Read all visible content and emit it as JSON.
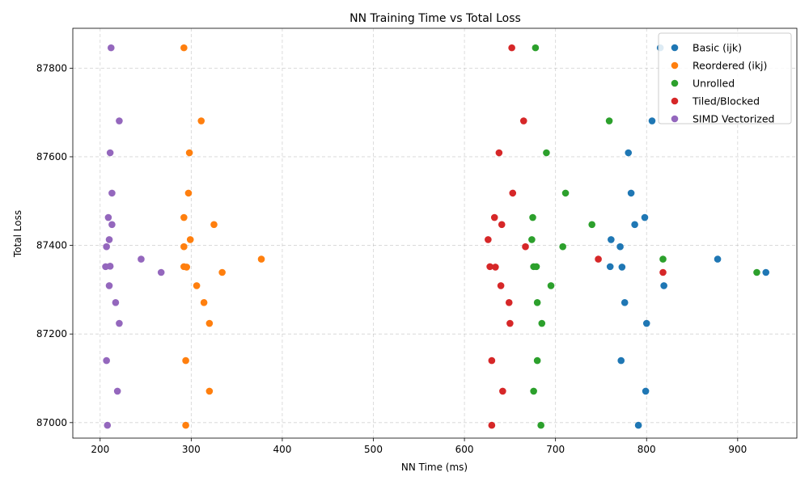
{
  "chart_data": {
    "type": "scatter",
    "title": "NN Training Time vs Total Loss",
    "xlabel": "NN Time (ms)",
    "ylabel": "Total Loss",
    "xlim": [
      170,
      965
    ],
    "ylim": [
      86965,
      87890
    ],
    "xticks": [
      200,
      300,
      400,
      500,
      600,
      700,
      800,
      900
    ],
    "yticks": [
      87000,
      87200,
      87400,
      87600,
      87800
    ],
    "grid": true,
    "legend_position": "top-right",
    "series": [
      {
        "name": "Basic (ijk)",
        "color": "#1f77b4",
        "points": [
          [
            815,
            87846
          ],
          [
            806,
            87681
          ],
          [
            780,
            87609
          ],
          [
            783,
            87518
          ],
          [
            798,
            87463
          ],
          [
            787,
            87447
          ],
          [
            761,
            87413
          ],
          [
            771,
            87397
          ],
          [
            878,
            87369
          ],
          [
            760,
            87352
          ],
          [
            773,
            87351
          ],
          [
            931,
            87339
          ],
          [
            819,
            87309
          ],
          [
            776,
            87271
          ],
          [
            800,
            87224
          ],
          [
            772,
            87140
          ],
          [
            799,
            87071
          ],
          [
            791,
            86994
          ]
        ]
      },
      {
        "name": "Reordered (ikj)",
        "color": "#ff7f0e",
        "points": [
          [
            292,
            87846
          ],
          [
            311,
            87681
          ],
          [
            298,
            87609
          ],
          [
            297,
            87518
          ],
          [
            292,
            87463
          ],
          [
            325,
            87447
          ],
          [
            299,
            87413
          ],
          [
            292,
            87397
          ],
          [
            377,
            87369
          ],
          [
            292,
            87352
          ],
          [
            295,
            87351
          ],
          [
            334,
            87339
          ],
          [
            306,
            87309
          ],
          [
            314,
            87271
          ],
          [
            320,
            87224
          ],
          [
            294,
            87140
          ],
          [
            320,
            87071
          ],
          [
            294,
            86994
          ]
        ]
      },
      {
        "name": "Unrolled",
        "color": "#2ca02c",
        "points": [
          [
            678,
            87846
          ],
          [
            759,
            87681
          ],
          [
            690,
            87609
          ],
          [
            711,
            87518
          ],
          [
            675,
            87463
          ],
          [
            740,
            87447
          ],
          [
            674,
            87413
          ],
          [
            708,
            87397
          ],
          [
            818,
            87369
          ],
          [
            676,
            87352
          ],
          [
            679,
            87352
          ],
          [
            921,
            87339
          ],
          [
            695,
            87309
          ],
          [
            680,
            87271
          ],
          [
            685,
            87224
          ],
          [
            680,
            87140
          ],
          [
            676,
            87071
          ],
          [
            684,
            86994
          ]
        ]
      },
      {
        "name": "Tiled/Blocked",
        "color": "#d62728",
        "points": [
          [
            652,
            87846
          ],
          [
            665,
            87681
          ],
          [
            638,
            87609
          ],
          [
            653,
            87518
          ],
          [
            633,
            87463
          ],
          [
            641,
            87447
          ],
          [
            626,
            87413
          ],
          [
            667,
            87397
          ],
          [
            747,
            87369
          ],
          [
            628,
            87352
          ],
          [
            634,
            87351
          ],
          [
            818,
            87339
          ],
          [
            640,
            87309
          ],
          [
            649,
            87271
          ],
          [
            650,
            87224
          ],
          [
            630,
            87140
          ],
          [
            642,
            87071
          ],
          [
            630,
            86994
          ]
        ]
      },
      {
        "name": "SIMD Vectorized",
        "color": "#9467bd",
        "points": [
          [
            212,
            87846
          ],
          [
            221,
            87681
          ],
          [
            211,
            87609
          ],
          [
            213,
            87518
          ],
          [
            209,
            87463
          ],
          [
            213,
            87447
          ],
          [
            210,
            87413
          ],
          [
            207,
            87397
          ],
          [
            245,
            87369
          ],
          [
            206,
            87352
          ],
          [
            211,
            87353
          ],
          [
            267,
            87339
          ],
          [
            210,
            87309
          ],
          [
            217,
            87271
          ],
          [
            221,
            87224
          ],
          [
            207,
            87140
          ],
          [
            219,
            87071
          ],
          [
            208,
            86994
          ]
        ]
      }
    ]
  }
}
